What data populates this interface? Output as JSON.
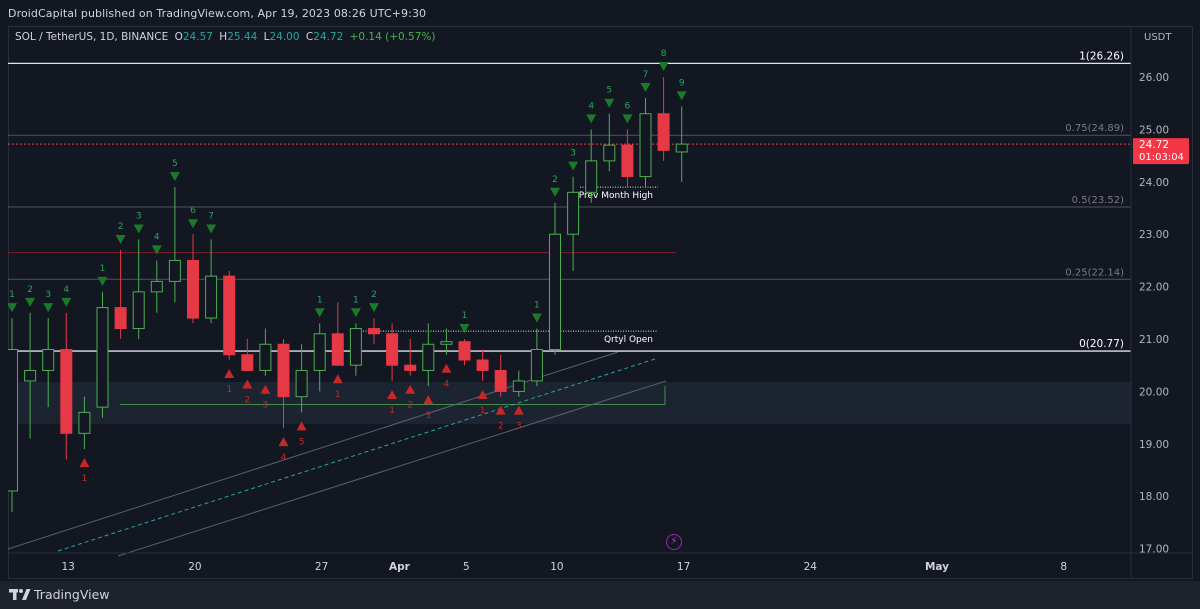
{
  "header": {
    "publisher": "DroidCapital published on TradingView.com, Apr 19, 2023 08:26 UTC+9:30"
  },
  "legend": {
    "symbol": "SOL / TetherUS, 1D, BINANCE",
    "open_label": "O",
    "open": "24.57",
    "high_label": "H",
    "high": "25.44",
    "low_label": "L",
    "low": "24.00",
    "close_label": "C",
    "close": "24.72",
    "change": "+0.14 (+0.57%)"
  },
  "price_axis": {
    "currency": "USDT",
    "ticks": [
      "26.00",
      "25.00",
      "24.00",
      "23.00",
      "22.00",
      "21.00",
      "20.00",
      "19.00",
      "18.00",
      "17.00"
    ],
    "last_price": "24.72",
    "countdown": "01:03:04"
  },
  "time_axis": {
    "ticks": [
      "13",
      "20",
      "27",
      "Apr",
      "5",
      "10",
      "17",
      "24",
      "May",
      "8"
    ]
  },
  "fib_levels": [
    {
      "label": "1(26.26)",
      "price": 26.26
    },
    {
      "label": "0.75(24.89)",
      "price": 24.89
    },
    {
      "label": "0.5(23.52)",
      "price": 23.52
    },
    {
      "label": "0.25(22.14)",
      "price": 22.14
    },
    {
      "label": "0(20.77)",
      "price": 20.77
    }
  ],
  "annotations": {
    "prev_month_high": "Prev Month High",
    "qrtly_open": "Qrtyl Open"
  },
  "chart_data": {
    "type": "candlestick",
    "symbol": "SOL / TetherUS",
    "interval": "1D",
    "exchange": "BINANCE",
    "y_range": [
      16.8,
      27.0
    ],
    "candles": [
      {
        "date": "Mar 11",
        "o": 18.1,
        "h": 21.4,
        "l": 17.7,
        "c": 20.8
      },
      {
        "date": "Mar 12",
        "o": 20.2,
        "h": 21.5,
        "l": 19.1,
        "c": 20.4
      },
      {
        "date": "Mar 13",
        "o": 20.4,
        "h": 21.4,
        "l": 19.7,
        "c": 20.8
      },
      {
        "date": "Mar 14",
        "o": 20.8,
        "h": 21.5,
        "l": 18.7,
        "c": 19.2
      },
      {
        "date": "Mar 15",
        "o": 19.2,
        "h": 19.9,
        "l": 18.9,
        "c": 19.6
      },
      {
        "date": "Mar 16",
        "o": 19.7,
        "h": 21.9,
        "l": 19.5,
        "c": 21.6
      },
      {
        "date": "Mar 17",
        "o": 21.6,
        "h": 22.7,
        "l": 21.0,
        "c": 21.2
      },
      {
        "date": "Mar 18",
        "o": 21.2,
        "h": 22.9,
        "l": 21.0,
        "c": 21.9
      },
      {
        "date": "Mar 19",
        "o": 21.9,
        "h": 22.5,
        "l": 21.5,
        "c": 22.1
      },
      {
        "date": "Mar 20",
        "o": 22.1,
        "h": 23.9,
        "l": 21.7,
        "c": 22.5
      },
      {
        "date": "Mar 21",
        "o": 22.5,
        "h": 23.0,
        "l": 21.3,
        "c": 21.4
      },
      {
        "date": "Mar 22",
        "o": 21.4,
        "h": 22.9,
        "l": 21.3,
        "c": 22.2
      },
      {
        "date": "Mar 23",
        "o": 22.2,
        "h": 22.3,
        "l": 20.6,
        "c": 20.7
      },
      {
        "date": "Mar 24",
        "o": 20.7,
        "h": 21.0,
        "l": 20.4,
        "c": 20.4
      },
      {
        "date": "Mar 25",
        "o": 20.4,
        "h": 21.2,
        "l": 20.3,
        "c": 20.9
      },
      {
        "date": "Mar 26",
        "o": 20.9,
        "h": 21.0,
        "l": 19.3,
        "c": 19.9
      },
      {
        "date": "Mar 27",
        "o": 19.9,
        "h": 20.9,
        "l": 19.6,
        "c": 20.4
      },
      {
        "date": "Mar 28",
        "o": 20.4,
        "h": 21.3,
        "l": 20.0,
        "c": 21.1
      },
      {
        "date": "Mar 29",
        "o": 21.1,
        "h": 21.7,
        "l": 20.5,
        "c": 20.5
      },
      {
        "date": "Mar 30",
        "o": 20.5,
        "h": 21.3,
        "l": 20.3,
        "c": 21.2
      },
      {
        "date": "Mar 31",
        "o": 21.2,
        "h": 21.4,
        "l": 20.9,
        "c": 21.1
      },
      {
        "date": "Apr 1",
        "o": 21.1,
        "h": 21.3,
        "l": 20.2,
        "c": 20.5
      },
      {
        "date": "Apr 2",
        "o": 20.5,
        "h": 21.0,
        "l": 20.3,
        "c": 20.4
      },
      {
        "date": "Apr 3",
        "o": 20.4,
        "h": 21.3,
        "l": 20.1,
        "c": 20.9
      },
      {
        "date": "Apr 4",
        "o": 20.9,
        "h": 21.2,
        "l": 20.7,
        "c": 20.95
      },
      {
        "date": "Apr 5",
        "o": 20.95,
        "h": 21.0,
        "l": 20.5,
        "c": 20.6
      },
      {
        "date": "Apr 6",
        "o": 20.6,
        "h": 20.8,
        "l": 20.2,
        "c": 20.4
      },
      {
        "date": "Apr 7",
        "o": 20.4,
        "h": 20.7,
        "l": 19.9,
        "c": 20.0
      },
      {
        "date": "Apr 8",
        "o": 20.0,
        "h": 20.4,
        "l": 19.9,
        "c": 20.2
      },
      {
        "date": "Apr 9",
        "o": 20.2,
        "h": 21.2,
        "l": 20.1,
        "c": 20.8
      },
      {
        "date": "Apr 10",
        "o": 20.8,
        "h": 23.6,
        "l": 20.7,
        "c": 23.0
      },
      {
        "date": "Apr 11",
        "o": 23.0,
        "h": 24.1,
        "l": 22.3,
        "c": 23.8
      },
      {
        "date": "Apr 12",
        "o": 23.8,
        "h": 25.0,
        "l": 23.6,
        "c": 24.4
      },
      {
        "date": "Apr 13",
        "o": 24.4,
        "h": 25.3,
        "l": 24.2,
        "c": 24.7
      },
      {
        "date": "Apr 14",
        "o": 24.7,
        "h": 25.0,
        "l": 23.9,
        "c": 24.1
      },
      {
        "date": "Apr 15",
        "o": 24.1,
        "h": 25.6,
        "l": 23.9,
        "c": 25.3
      },
      {
        "date": "Apr 16",
        "o": 25.3,
        "h": 26.0,
        "l": 24.4,
        "c": 24.6
      },
      {
        "date": "Apr 17",
        "o": 24.57,
        "h": 25.44,
        "l": 24.0,
        "c": 24.72
      }
    ],
    "levels": [
      {
        "label": "1(26.26)",
        "price": 26.26
      },
      {
        "label": "0.75(24.89)",
        "price": 24.89
      },
      {
        "label": "0.5(23.52)",
        "price": 23.52
      },
      {
        "label": "0.25(22.14)",
        "price": 22.14
      },
      {
        "label": "0(20.77)",
        "price": 20.77
      }
    ],
    "sequential_counts": [
      {
        "i": 0,
        "type": "sell",
        "n": "1"
      },
      {
        "i": 1,
        "type": "sell",
        "n": "2"
      },
      {
        "i": 2,
        "type": "sell",
        "n": "3"
      },
      {
        "i": 3,
        "type": "sell",
        "n": "4"
      },
      {
        "i": 5,
        "type": "sell",
        "n": "1"
      },
      {
        "i": 6,
        "type": "sell",
        "n": "2"
      },
      {
        "i": 7,
        "type": "sell",
        "n": "3"
      },
      {
        "i": 8,
        "type": "sell",
        "n": "4"
      },
      {
        "i": 9,
        "type": "sell",
        "n": "5"
      },
      {
        "i": 10,
        "type": "sell",
        "n": "6"
      },
      {
        "i": 11,
        "type": "sell",
        "n": "7"
      },
      {
        "i": 17,
        "type": "sell",
        "n": "1"
      },
      {
        "i": 19,
        "type": "sell",
        "n": "1"
      },
      {
        "i": 20,
        "type": "sell",
        "n": "2"
      },
      {
        "i": 25,
        "type": "sell",
        "n": "1"
      },
      {
        "i": 29,
        "type": "sell",
        "n": "1"
      },
      {
        "i": 30,
        "type": "sell",
        "n": "2"
      },
      {
        "i": 31,
        "type": "sell",
        "n": "3"
      },
      {
        "i": 32,
        "type": "sell",
        "n": "4"
      },
      {
        "i": 33,
        "type": "sell",
        "n": "5"
      },
      {
        "i": 34,
        "type": "sell",
        "n": "6"
      },
      {
        "i": 35,
        "type": "sell",
        "n": "7"
      },
      {
        "i": 36,
        "type": "sell",
        "n": "8"
      },
      {
        "i": 37,
        "type": "sell",
        "n": "9"
      },
      {
        "i": 4,
        "type": "buy",
        "n": "1"
      },
      {
        "i": 12,
        "type": "buy",
        "n": "1"
      },
      {
        "i": 13,
        "type": "buy",
        "n": "2"
      },
      {
        "i": 14,
        "type": "buy",
        "n": "3"
      },
      {
        "i": 15,
        "type": "buy",
        "n": "4"
      },
      {
        "i": 16,
        "type": "buy",
        "n": "5"
      },
      {
        "i": 18,
        "type": "buy",
        "n": "1"
      },
      {
        "i": 21,
        "type": "buy",
        "n": "1"
      },
      {
        "i": 22,
        "type": "buy",
        "n": "2"
      },
      {
        "i": 23,
        "type": "buy",
        "n": "3"
      },
      {
        "i": 24,
        "type": "buy",
        "n": "4"
      },
      {
        "i": 26,
        "type": "buy",
        "n": "1"
      },
      {
        "i": 27,
        "type": "buy",
        "n": "2"
      },
      {
        "i": 28,
        "type": "buy",
        "n": "3"
      }
    ]
  },
  "colors": {
    "up": "#131722",
    "up_border": "#4caf50",
    "down": "#e53946",
    "sell_marker": "#1b7a2a",
    "buy_marker": "#c62828",
    "last_price": "#f23645"
  },
  "footer": {
    "brand": "TradingView"
  }
}
